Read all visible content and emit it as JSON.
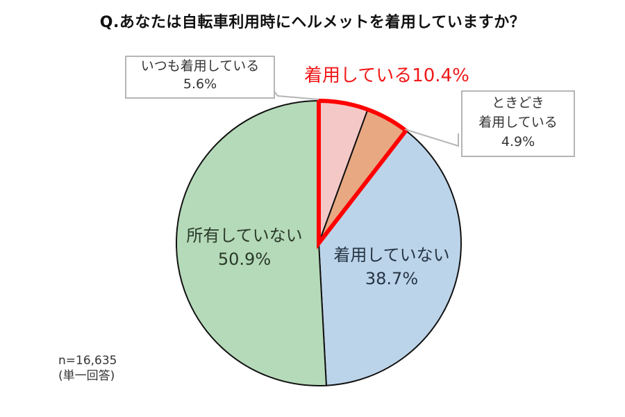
{
  "title": "Q.あなたは自転車利用時にヘルメットを着用していますか？",
  "highlight_label": "着用している10.4%",
  "callouts": {
    "always": {
      "line1": "いつも着用している",
      "line2": "5.6%"
    },
    "sometimes": {
      "line1": "ときどき",
      "line2": "着用している",
      "line3": "4.9%"
    }
  },
  "slice_labels": {
    "not_wearing": {
      "line1": "着用していない",
      "line2": "38.7%"
    },
    "not_owning": {
      "line1": "所有していない",
      "line2": "50.9%"
    }
  },
  "note": {
    "sample": "n=16,635",
    "type": "(単一回答)"
  },
  "colors": {
    "always": "#f5c8c8",
    "sometimes": "#e8a882",
    "not_wearing": "#bcd4e9",
    "not_owning": "#b5dab9",
    "highlight_border": "#ff0000"
  },
  "chart_data": {
    "type": "pie",
    "title": "Q.あなたは自転車利用時にヘルメットを着用していますか？",
    "categories": [
      "いつも着用している",
      "ときどき着用している",
      "着用していない",
      "所有していない"
    ],
    "values": [
      5.6,
      4.9,
      38.7,
      50.9
    ],
    "unit": "%",
    "start_angle": "12 o'clock, clockwise",
    "annotations": [
      "着用している10.4% (いつも + ときどき, highlighted with red outline)",
      "n=16,635",
      "(単一回答)"
    ]
  }
}
